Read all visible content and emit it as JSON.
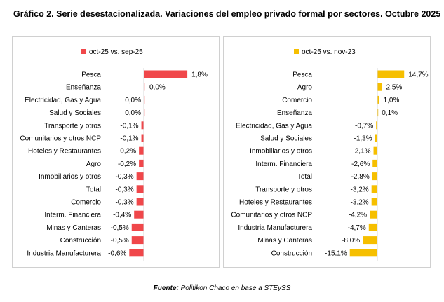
{
  "title": "Gráfico 2. Serie desestacionalizada. Variaciones del empleo privado formal por sectores. Octubre 2025",
  "source": {
    "label": "Fuente:",
    "text": "Politikon Chaco en base a STEySS"
  },
  "chart_data": [
    {
      "type": "bar",
      "orientation": "horizontal",
      "legend": {
        "label": "oct-25 vs. sep-25",
        "position": "top"
      },
      "color": "#f0474a",
      "categories": [
        "Pesca",
        "Enseñanza",
        "Electricidad, Gas y Agua",
        "Salud y Sociales",
        "Transporte y otros",
        "Comunitarios y otros NCP",
        "Hoteles y Restaurantes",
        "Agro",
        "Inmobiliarios y otros",
        "Total",
        "Comercio",
        "Interm. Financiera",
        "Minas y Canteras",
        "Construcción",
        "Industria Manufacturera"
      ],
      "values": [
        1.8,
        0.0,
        0.0,
        0.0,
        -0.1,
        -0.1,
        -0.2,
        -0.2,
        -0.3,
        -0.3,
        -0.3,
        -0.4,
        -0.5,
        -0.5,
        -0.6
      ],
      "labels": [
        "1,8%",
        "0,0%",
        "0,0%",
        "0,0%",
        "-0,1%",
        "-0,1%",
        "-0,2%",
        "-0,2%",
        "-0,3%",
        "-0,3%",
        "-0,3%",
        "-0,4%",
        "-0,5%",
        "-0,5%",
        "-0,6%"
      ],
      "xlim": [
        -0.65,
        1.85
      ]
    },
    {
      "type": "bar",
      "orientation": "horizontal",
      "legend": {
        "label": "oct-25 vs. nov-23",
        "position": "top"
      },
      "color": "#f6bf00",
      "categories": [
        "Pesca",
        "Agro",
        "Comercio",
        "Enseñanza",
        "Electricidad, Gas y Agua",
        "Salud y Sociales",
        "Inmobiliarios y otros",
        "Interm. Financiera",
        "Total",
        "Transporte y otros",
        "Hoteles y Restaurantes",
        "Comunitarios y otros NCP",
        "Industria Manufacturera",
        "Minas y Canteras",
        "Construcción"
      ],
      "values": [
        14.7,
        2.5,
        1.0,
        0.1,
        -0.7,
        -1.3,
        -2.1,
        -2.6,
        -2.8,
        -3.2,
        -3.2,
        -4.2,
        -4.7,
        -8.0,
        -15.1
      ],
      "labels": [
        "14,7%",
        "2,5%",
        "1,0%",
        "0,1%",
        "-0,7%",
        "-1,3%",
        "-2,1%",
        "-2,6%",
        "-2,8%",
        "-3,2%",
        "-3,2%",
        "-4,2%",
        "-4,7%",
        "-8,0%",
        "-15,1%"
      ],
      "xlim": [
        -15.5,
        15.0
      ]
    }
  ]
}
